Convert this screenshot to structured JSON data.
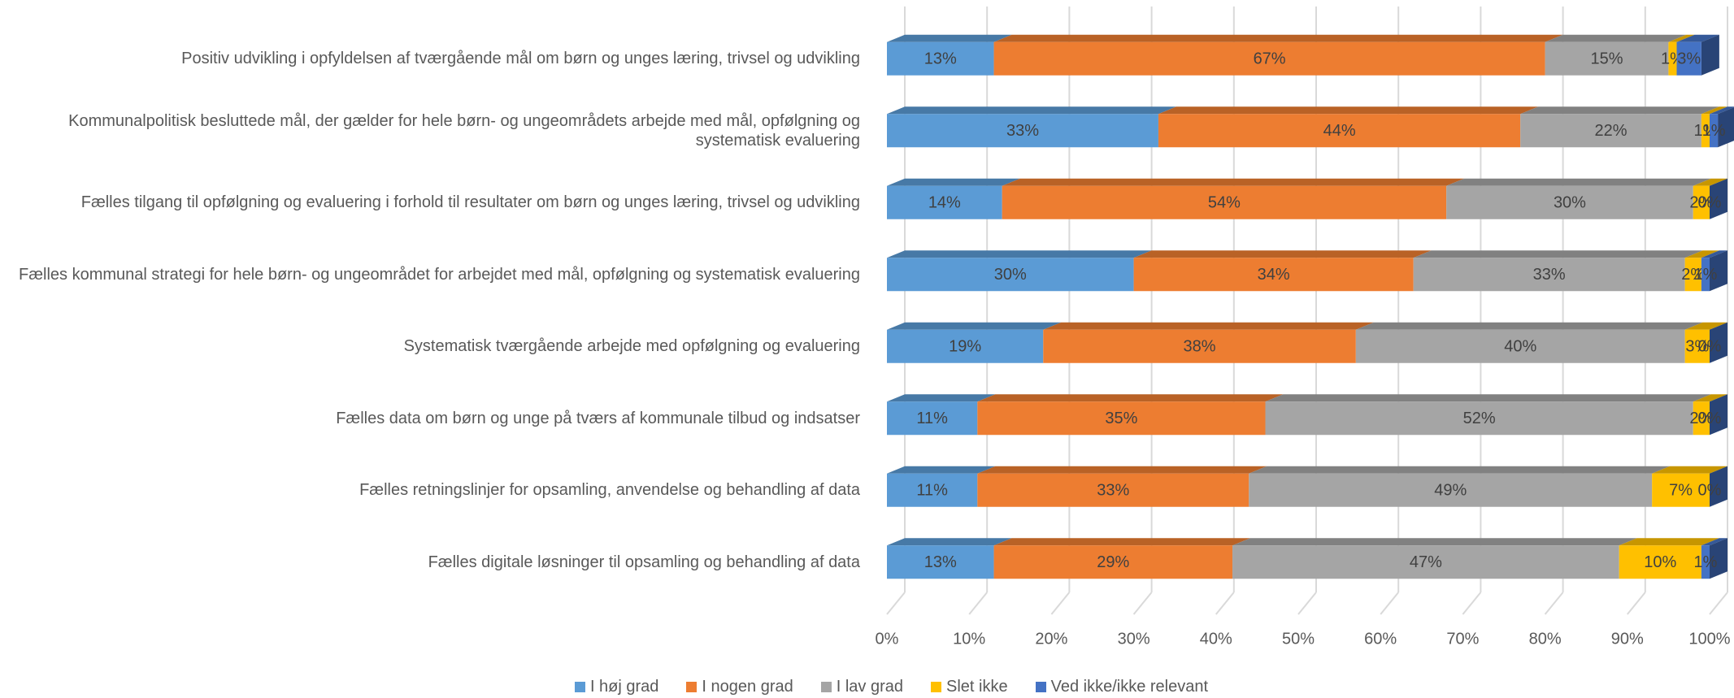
{
  "chart_data": {
    "type": "stacked_bar_3d",
    "orientation": "horizontal",
    "categories": [
      "Positiv udvikling i opfyldelsen af tværgående mål om børn og unges læring, trivsel og udvikling",
      "Kommunalpolitisk besluttede mål, der gælder for hele børn- og ungeområdets arbejde med mål, opfølgning og systematisk evaluering",
      "Fælles tilgang til opfølgning og evaluering i forhold til resultater om børn og unges læring, trivsel og udvikling",
      "Fælles kommunal strategi for hele børn- og ungeområdet for arbejdet med mål, opfølgning og systematisk evaluering",
      "Systematisk tværgående arbejde med opfølgning og evaluering",
      "Fælles data om børn og unge på tværs af kommunale tilbud og indsatser",
      "Fælles retningslinjer for opsamling, anvendelse og behandling af data",
      "Fælles digitale løsninger til opsamling og behandling af data"
    ],
    "series": [
      {
        "name": "I høj grad",
        "color": "#5b9bd5",
        "values": [
          13,
          33,
          14,
          30,
          19,
          11,
          11,
          13
        ],
        "value_labels": [
          "13%",
          "33%",
          "14%",
          "30%",
          "19%",
          "11%",
          "11%",
          "13%"
        ]
      },
      {
        "name": "I nogen grad",
        "color": "#ed7d31",
        "values": [
          67,
          44,
          54,
          34,
          38,
          35,
          33,
          29
        ],
        "value_labels": [
          "67%",
          "44%",
          "54%",
          "34%",
          "38%",
          "35%",
          "33%",
          "29%"
        ]
      },
      {
        "name": "I lav grad",
        "color": "#a5a5a5",
        "values": [
          15,
          22,
          30,
          33,
          40,
          52,
          49,
          47
        ],
        "value_labels": [
          "15%",
          "22%",
          "30%",
          "33%",
          "40%",
          "52%",
          "49%",
          "47%"
        ]
      },
      {
        "name": "Slet ikke",
        "color": "#ffc000",
        "values": [
          1,
          1,
          2,
          2,
          3,
          2,
          7,
          10
        ],
        "value_labels": [
          "1%",
          "1%",
          "2%",
          "2%",
          "3%",
          "2%",
          "7%",
          "10%"
        ]
      },
      {
        "name": "Ved ikke/ikke relevant",
        "color": "#4472c4",
        "values": [
          3,
          1,
          0,
          1,
          0,
          0,
          0,
          1
        ],
        "value_labels": [
          "3%",
          "1%",
          "0%",
          "1%",
          "0%",
          "0%",
          "0%",
          "1%"
        ]
      }
    ],
    "xlim": [
      0,
      100
    ],
    "xticks": [
      {
        "value": 0,
        "label": "0%"
      },
      {
        "value": 10,
        "label": "10%"
      },
      {
        "value": 20,
        "label": "20%"
      },
      {
        "value": 30,
        "label": "30%"
      },
      {
        "value": 40,
        "label": "40%"
      },
      {
        "value": 50,
        "label": "50%"
      },
      {
        "value": 60,
        "label": "60%"
      },
      {
        "value": 70,
        "label": "70%"
      },
      {
        "value": 80,
        "label": "80%"
      },
      {
        "value": 90,
        "label": "90%"
      },
      {
        "value": 100,
        "label": "100%"
      }
    ],
    "grid": true,
    "legend": "bottom"
  }
}
